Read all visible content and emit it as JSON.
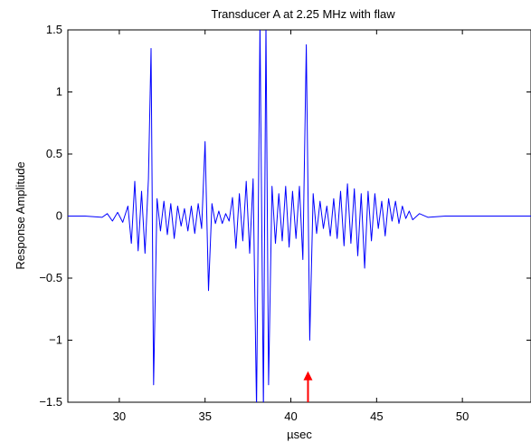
{
  "chart_data": {
    "type": "line",
    "title": "Transducer A at 2.25 MHz with flaw",
    "xlabel": "µsec",
    "ylabel": "Response Amplitude",
    "xlim": [
      27,
      54
    ],
    "ylim": [
      -1.5,
      1.5
    ],
    "x_ticks": [
      30,
      35,
      40,
      45,
      50
    ],
    "y_ticks": [
      -1.5,
      -1,
      -0.5,
      0,
      0.5,
      1,
      1.5
    ],
    "x_tick_labels": [
      "30",
      "35",
      "40",
      "45",
      "50"
    ],
    "y_tick_labels": [
      "−1.5",
      "−1",
      "−0.5",
      "0",
      "0.5",
      "1",
      "1.5"
    ],
    "grid": false,
    "line_color": "#0000ff",
    "series": [
      {
        "x": [
          27,
          28,
          29,
          29.3,
          29.6,
          29.9,
          30.2,
          30.5,
          30.7,
          30.9,
          31.1,
          31.3,
          31.5,
          31.7,
          31.85,
          32.0,
          32.2,
          32.4,
          32.6,
          32.8,
          33.0,
          33.2,
          33.4,
          33.6,
          33.8,
          34.0,
          34.2,
          34.4,
          34.6,
          34.8,
          35.0,
          35.2,
          35.4,
          35.6,
          35.8,
          36.0,
          36.2,
          36.4,
          36.6,
          36.8,
          37.0,
          37.2,
          37.4,
          37.6,
          37.8,
          38.0,
          38.2,
          38.4,
          38.55,
          38.7,
          38.9,
          39.1,
          39.3,
          39.5,
          39.7,
          39.9,
          40.1,
          40.3,
          40.5,
          40.7,
          40.9,
          41.1,
          41.3,
          41.5,
          41.7,
          41.9,
          42.1,
          42.3,
          42.5,
          42.7,
          42.9,
          43.1,
          43.3,
          43.5,
          43.7,
          43.9,
          44.1,
          44.3,
          44.5,
          44.7,
          44.9,
          45.1,
          45.3,
          45.5,
          45.7,
          45.9,
          46.1,
          46.3,
          46.5,
          46.7,
          46.9,
          47.1,
          47.5,
          48,
          49,
          50,
          51,
          52,
          53,
          54
        ],
        "y": [
          0,
          0.0,
          -0.01,
          0.02,
          -0.04,
          0.03,
          -0.05,
          0.08,
          -0.22,
          0.28,
          -0.28,
          0.2,
          -0.3,
          0.3,
          1.35,
          -1.36,
          0.14,
          -0.12,
          0.12,
          -0.15,
          0.1,
          -0.18,
          0.08,
          -0.08,
          0.06,
          -0.12,
          0.08,
          -0.14,
          0.1,
          -0.1,
          0.6,
          -0.6,
          0.1,
          -0.06,
          0.04,
          -0.06,
          0.02,
          -0.04,
          0.15,
          -0.26,
          0.18,
          -0.2,
          0.28,
          -0.3,
          0.3,
          -1.55,
          1.55,
          -1.55,
          1.55,
          -1.36,
          0.24,
          -0.22,
          0.18,
          -0.2,
          0.24,
          -0.25,
          0.2,
          -0.18,
          0.24,
          -0.35,
          1.38,
          -1.0,
          0.18,
          -0.14,
          0.12,
          -0.1,
          0.08,
          -0.16,
          0.14,
          -0.18,
          0.2,
          -0.24,
          0.26,
          -0.22,
          0.22,
          -0.32,
          0.18,
          -0.42,
          0.2,
          -0.2,
          0.18,
          -0.1,
          0.12,
          -0.16,
          0.14,
          -0.04,
          0.12,
          -0.06,
          0.08,
          -0.02,
          0.04,
          -0.03,
          0.02,
          -0.01,
          0.0,
          0.0,
          0.0,
          0.0,
          0.0,
          0.0
        ]
      }
    ],
    "annotations": [
      {
        "type": "arrow",
        "x": 41.0,
        "y_from": -1.5,
        "y_to": -1.25,
        "color": "#ff0000"
      }
    ]
  }
}
